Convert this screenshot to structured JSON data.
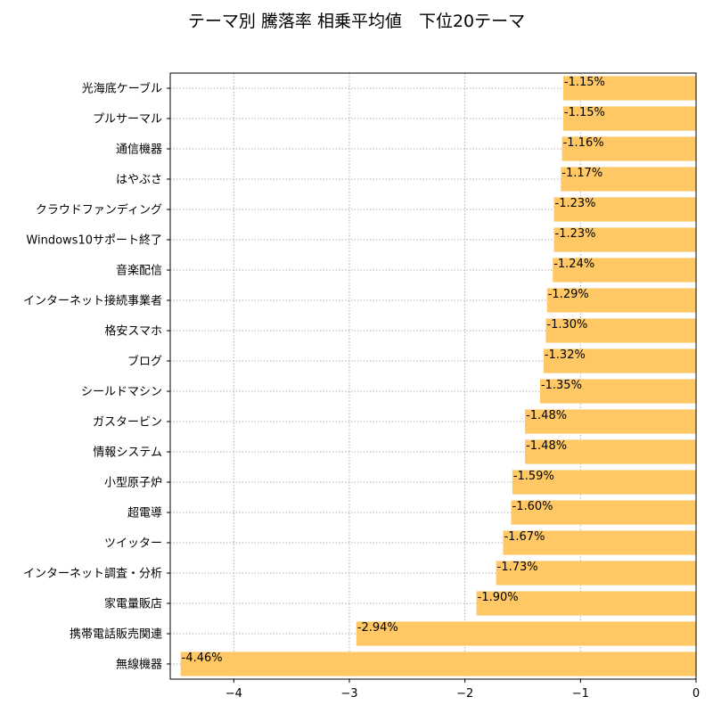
{
  "chart_data": {
    "type": "bar",
    "orientation": "horizontal",
    "title": "テーマ別 騰落率 相乗平均値　下位20テーマ",
    "xlabel": "",
    "ylabel": "",
    "xlim": [
      -4.55,
      0
    ],
    "xticks": [
      -4,
      -3,
      -2,
      -1,
      0
    ],
    "xtick_labels": [
      "−4",
      "−3",
      "−2",
      "−1",
      "0"
    ],
    "grid": true,
    "bar_color": "#FFC864",
    "categories": [
      "光海底ケーブル",
      "プルサーマル",
      "通信機器",
      "はやぶさ",
      "クラウドファンディング",
      "Windows10サポート終了",
      "音楽配信",
      "インターネット接続事業者",
      "格安スマホ",
      "ブログ",
      "シールドマシン",
      "ガスタービン",
      "情報システム",
      "小型原子炉",
      "超電導",
      "ツイッター",
      "インターネット調査・分析",
      "家電量販店",
      "携帯電話販売関連",
      "無線機器"
    ],
    "values": [
      -1.15,
      -1.15,
      -1.16,
      -1.17,
      -1.23,
      -1.23,
      -1.24,
      -1.29,
      -1.3,
      -1.32,
      -1.35,
      -1.48,
      -1.48,
      -1.59,
      -1.6,
      -1.67,
      -1.73,
      -1.9,
      -2.94,
      -4.46
    ],
    "data_labels": [
      "-1.15%",
      "-1.15%",
      "-1.16%",
      "-1.17%",
      "-1.23%",
      "-1.23%",
      "-1.24%",
      "-1.29%",
      "-1.30%",
      "-1.32%",
      "-1.35%",
      "-1.48%",
      "-1.48%",
      "-1.59%",
      "-1.60%",
      "-1.67%",
      "-1.73%",
      "-1.90%",
      "-2.94%",
      "-4.46%"
    ]
  }
}
